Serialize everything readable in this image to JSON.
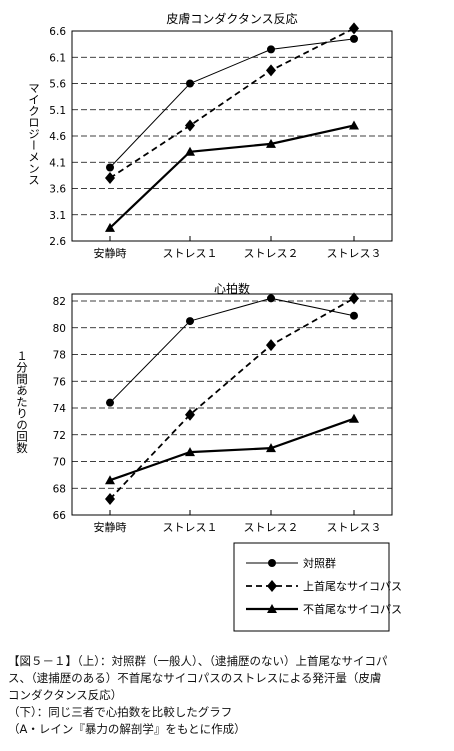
{
  "charts": [
    {
      "type": "line",
      "title": "皮膚コンダクタンス反応",
      "ylabel": "マイクロジーメンス",
      "categories": [
        "安静時",
        "ストレス１",
        "ストレス２",
        "ストレス３"
      ],
      "yticks": [
        "6.6",
        "6.1",
        "5.6",
        "5.1",
        "4.6",
        "4.1",
        "3.6",
        "3.1",
        "2.6"
      ],
      "ylim": [
        2.6,
        6.6
      ]
    },
    {
      "type": "line",
      "title": "心拍数",
      "ylabel": "１分間あたりの回数",
      "categories": [
        "安静時",
        "ストレス１",
        "ストレス２",
        "ストレス３"
      ],
      "yticks": [
        "82",
        "80",
        "78",
        "76",
        "74",
        "72",
        "70",
        "68",
        "66"
      ],
      "ylim": [
        66,
        83
      ]
    }
  ],
  "legend": {
    "items": [
      "対照群",
      "上首尾なサイコパス",
      "不首尾なサイコパス"
    ]
  },
  "caption": {
    "line1": "【図５－１】（上）：対照群（一般人）、（逮捕歴のない）上首尾なサイコパ",
    "line2": "ス、（逮捕歴のある）不首尾なサイコパスのストレスによる発汗量（皮膚",
    "line3": "コンダクタンス反応）",
    "line4": "（下）：同じ三者で心拍数を比較したグラフ",
    "line5": "（A・レイン『暴力の解剖学』をもとに作成）"
  },
  "chart_data": [
    {
      "type": "line",
      "title": "皮膚コンダクタンス反応",
      "xlabel": "",
      "ylabel": "マイクロジーメンス",
      "categories": [
        "安静時",
        "ストレス１",
        "ストレス２",
        "ストレス３"
      ],
      "ylim": [
        2.6,
        6.6
      ],
      "grid": true,
      "series": [
        {
          "name": "対照群",
          "values": [
            4.0,
            5.6,
            6.25,
            6.45
          ],
          "style": "thin",
          "marker": "circle"
        },
        {
          "name": "上首尾なサイコパス",
          "values": [
            3.8,
            4.8,
            5.85,
            6.65
          ],
          "style": "dashed",
          "marker": "diamond"
        },
        {
          "name": "不首尾なサイコパス",
          "values": [
            2.85,
            4.3,
            4.45,
            4.8
          ],
          "style": "thick",
          "marker": "triangle"
        }
      ]
    },
    {
      "type": "line",
      "title": "心拍数",
      "xlabel": "",
      "ylabel": "１分間あたりの回数",
      "categories": [
        "安静時",
        "ストレス１",
        "ストレス２",
        "ストレス３"
      ],
      "ylim": [
        66,
        83
      ],
      "grid": true,
      "series": [
        {
          "name": "対照群",
          "values": [
            74.4,
            80.5,
            82.2,
            80.9
          ],
          "style": "thin",
          "marker": "circle"
        },
        {
          "name": "上首尾なサイコパス",
          "values": [
            67.2,
            73.5,
            78.7,
            82.2
          ],
          "style": "dashed",
          "marker": "diamond"
        },
        {
          "name": "不首尾なサイコパス",
          "values": [
            68.6,
            70.7,
            71.0,
            73.2
          ],
          "style": "thick",
          "marker": "triangle"
        }
      ]
    }
  ]
}
